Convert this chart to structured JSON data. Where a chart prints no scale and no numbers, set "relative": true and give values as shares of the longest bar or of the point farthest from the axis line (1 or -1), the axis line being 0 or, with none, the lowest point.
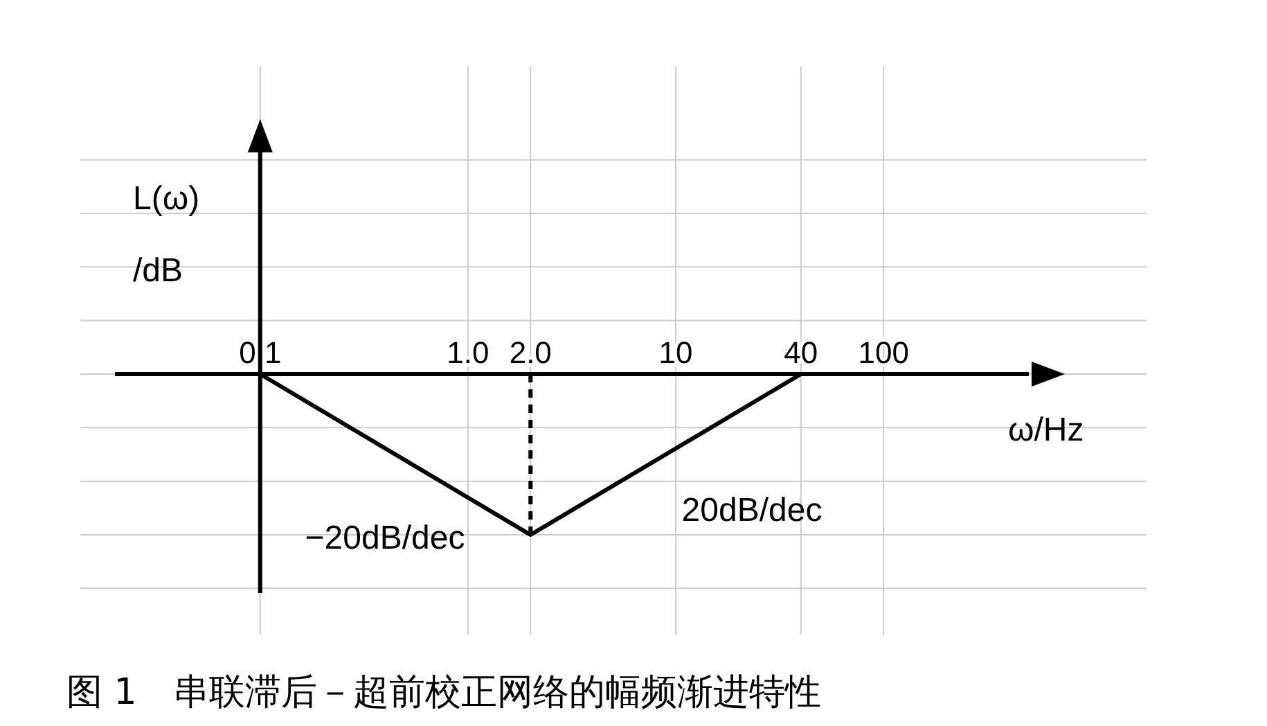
{
  "chart_data": {
    "type": "line",
    "title": "图 1　串联滞后－超前校正网络的幅频渐进特性",
    "xlabel": "ω/Hz",
    "ylabel": "L(ω) /dB",
    "relative": true,
    "log": "x",
    "x": [
      0.1,
      2.0,
      40
    ],
    "series": [
      {
        "color": "#000000",
        "values": [
          0,
          -1,
          0
        ]
      }
    ],
    "xlim": [
      0.02,
      500
    ],
    "xticks": [
      0.1,
      {
        "value": 1,
        "label": "1.0"
      },
      {
        "value": 2,
        "label": "2.0"
      },
      10,
      40,
      100
    ],
    "ref_lines": [
      {
        "axis": "x",
        "value": 2,
        "line_style": "dashed",
        "color": "#000000"
      },
      {
        "axis": "x",
        "value": 0.1,
        "line_style": "solid",
        "color": "#000000"
      }
    ],
    "annotations": [
      "−20dB/dec",
      "20dB/dec"
    ],
    "grid": true,
    "marker": "none",
    "line_style": "solid"
  }
}
